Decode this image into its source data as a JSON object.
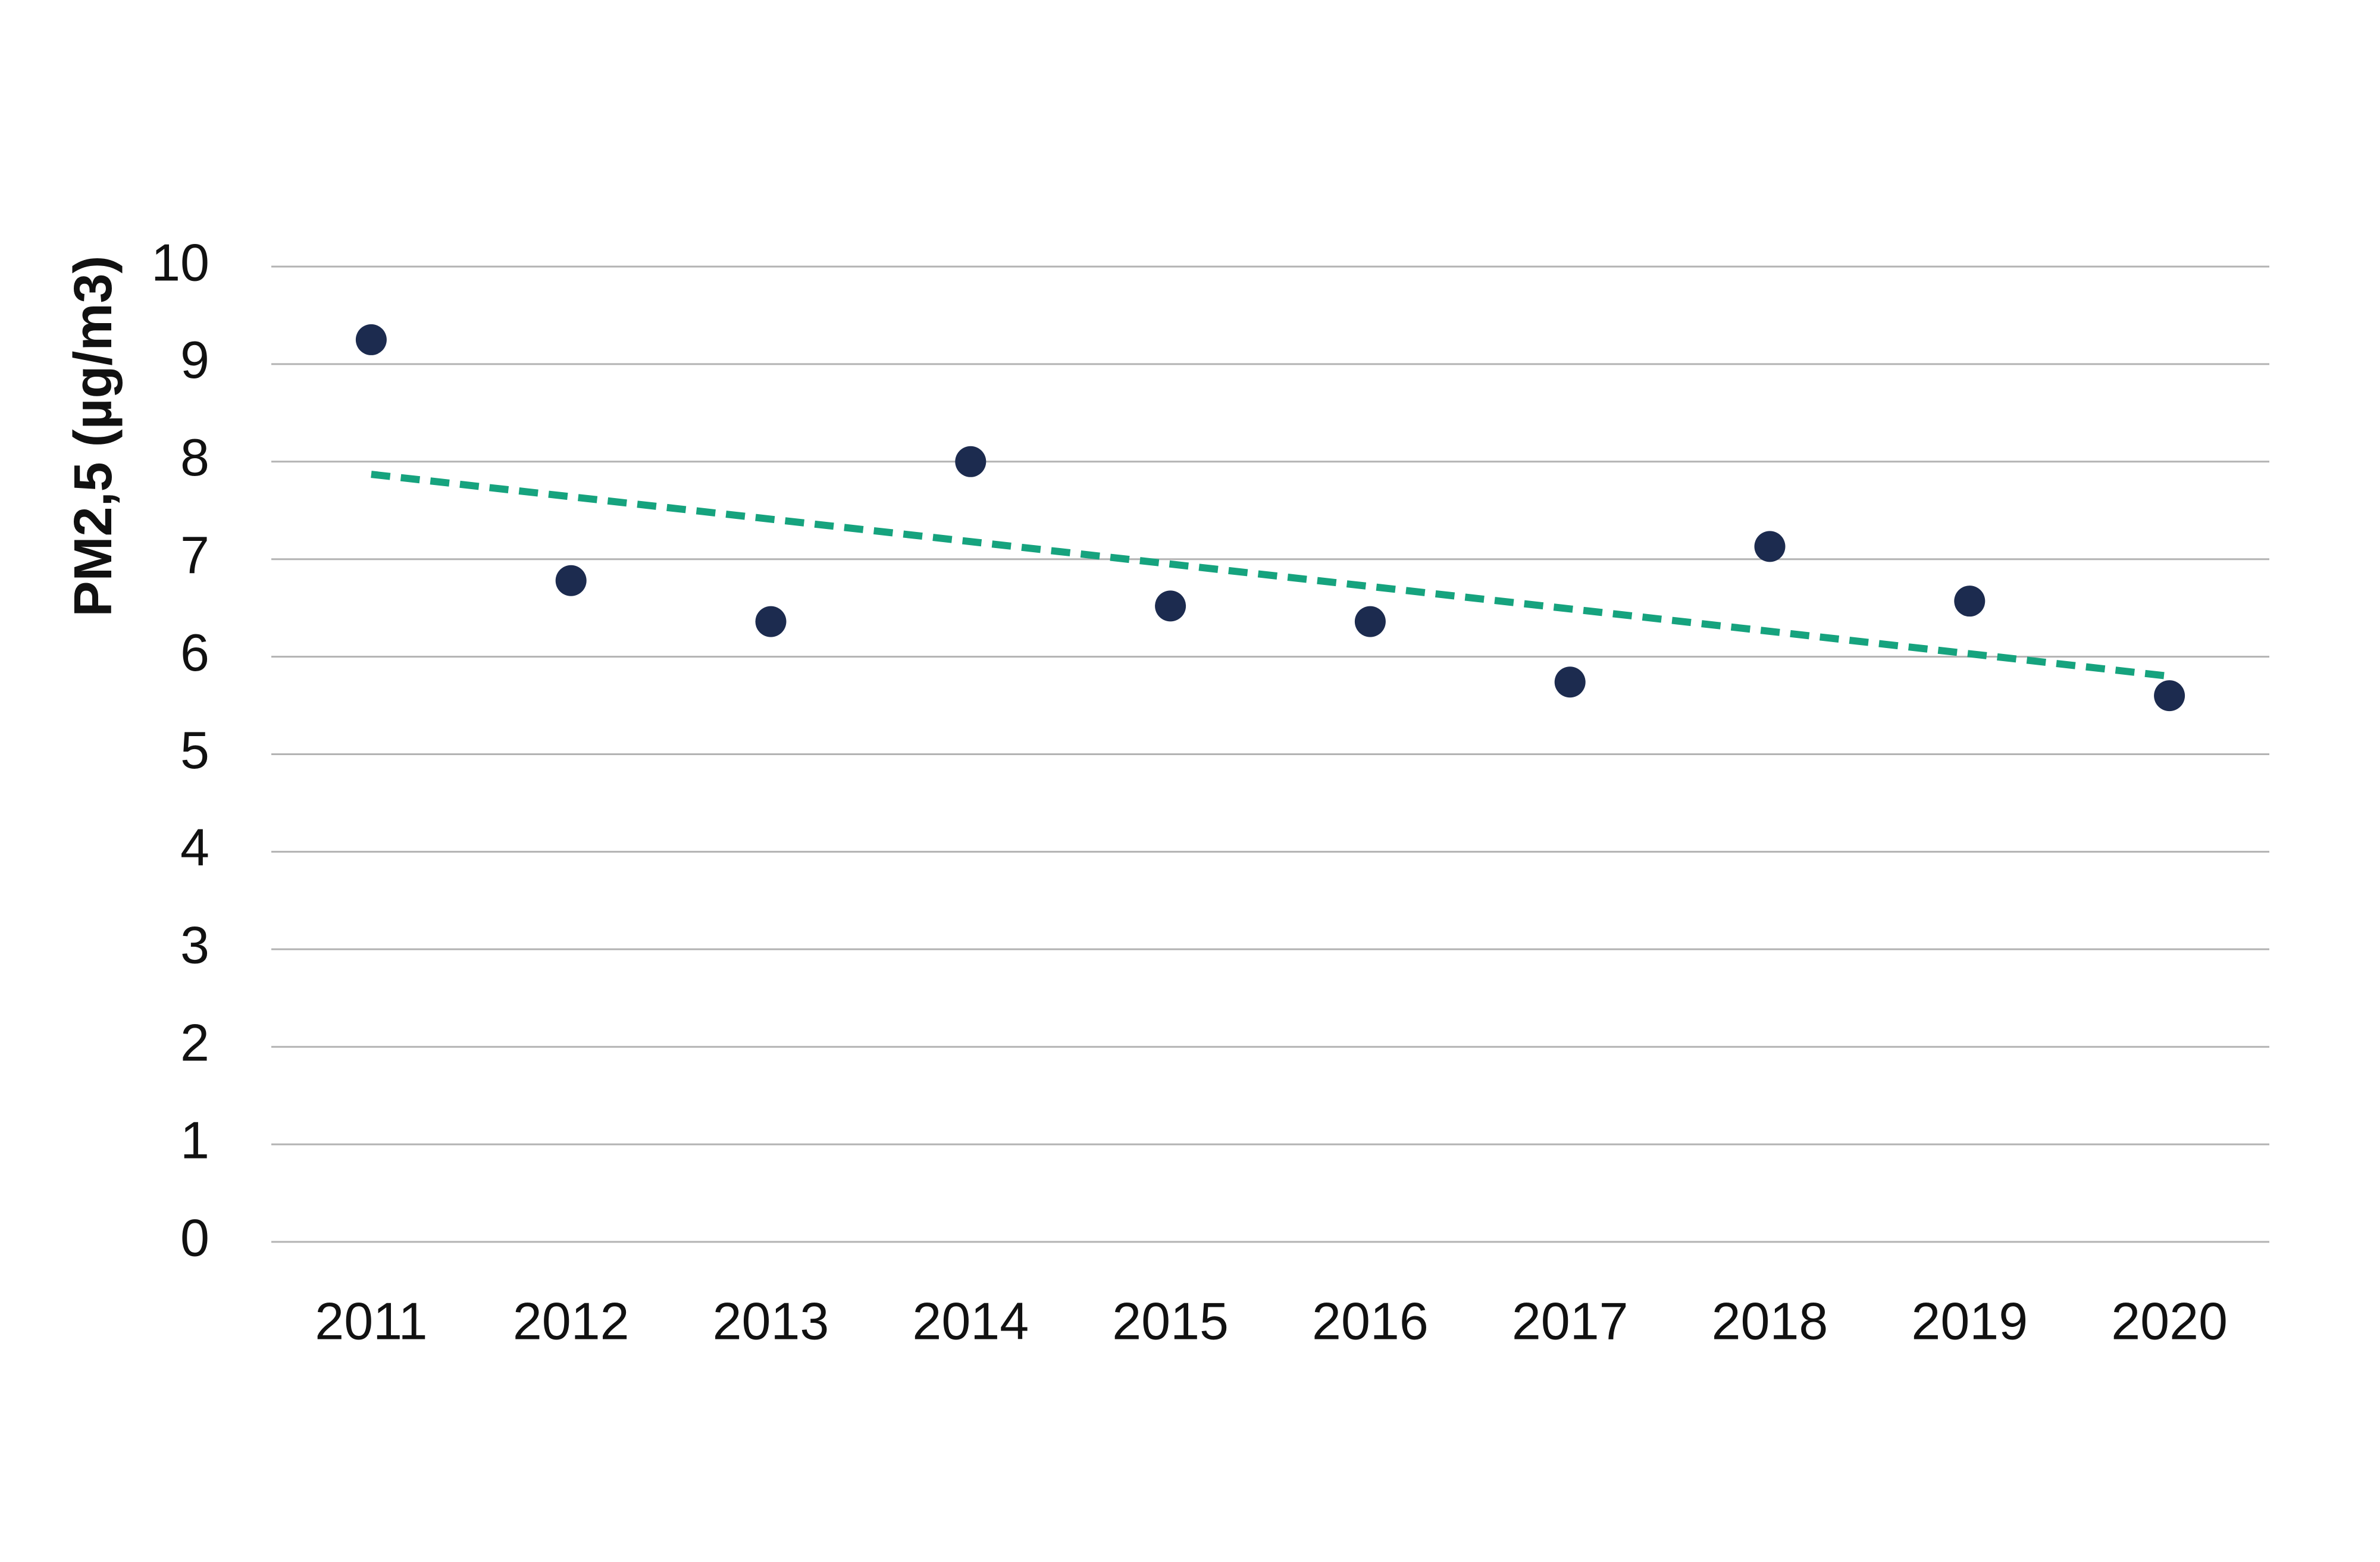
{
  "chart_data": {
    "type": "scatter",
    "y_label": "PM2,5 (µg/m3)",
    "categories": [
      "2011",
      "2012",
      "2013",
      "2014",
      "2015",
      "2016",
      "2017",
      "2018",
      "2019",
      "2020"
    ],
    "values": [
      9.25,
      6.78,
      6.36,
      8.0,
      6.52,
      6.36,
      5.74,
      7.13,
      6.57,
      5.6
    ],
    "color": "#1c2b4f",
    "trend": {
      "color": "#16a37e",
      "values": [
        7.87,
        5.8
      ]
    },
    "ylim": [
      0,
      10
    ],
    "yticks": [
      0,
      1,
      2,
      3,
      4,
      5,
      6,
      7,
      8,
      9,
      10
    ],
    "grid": true
  }
}
